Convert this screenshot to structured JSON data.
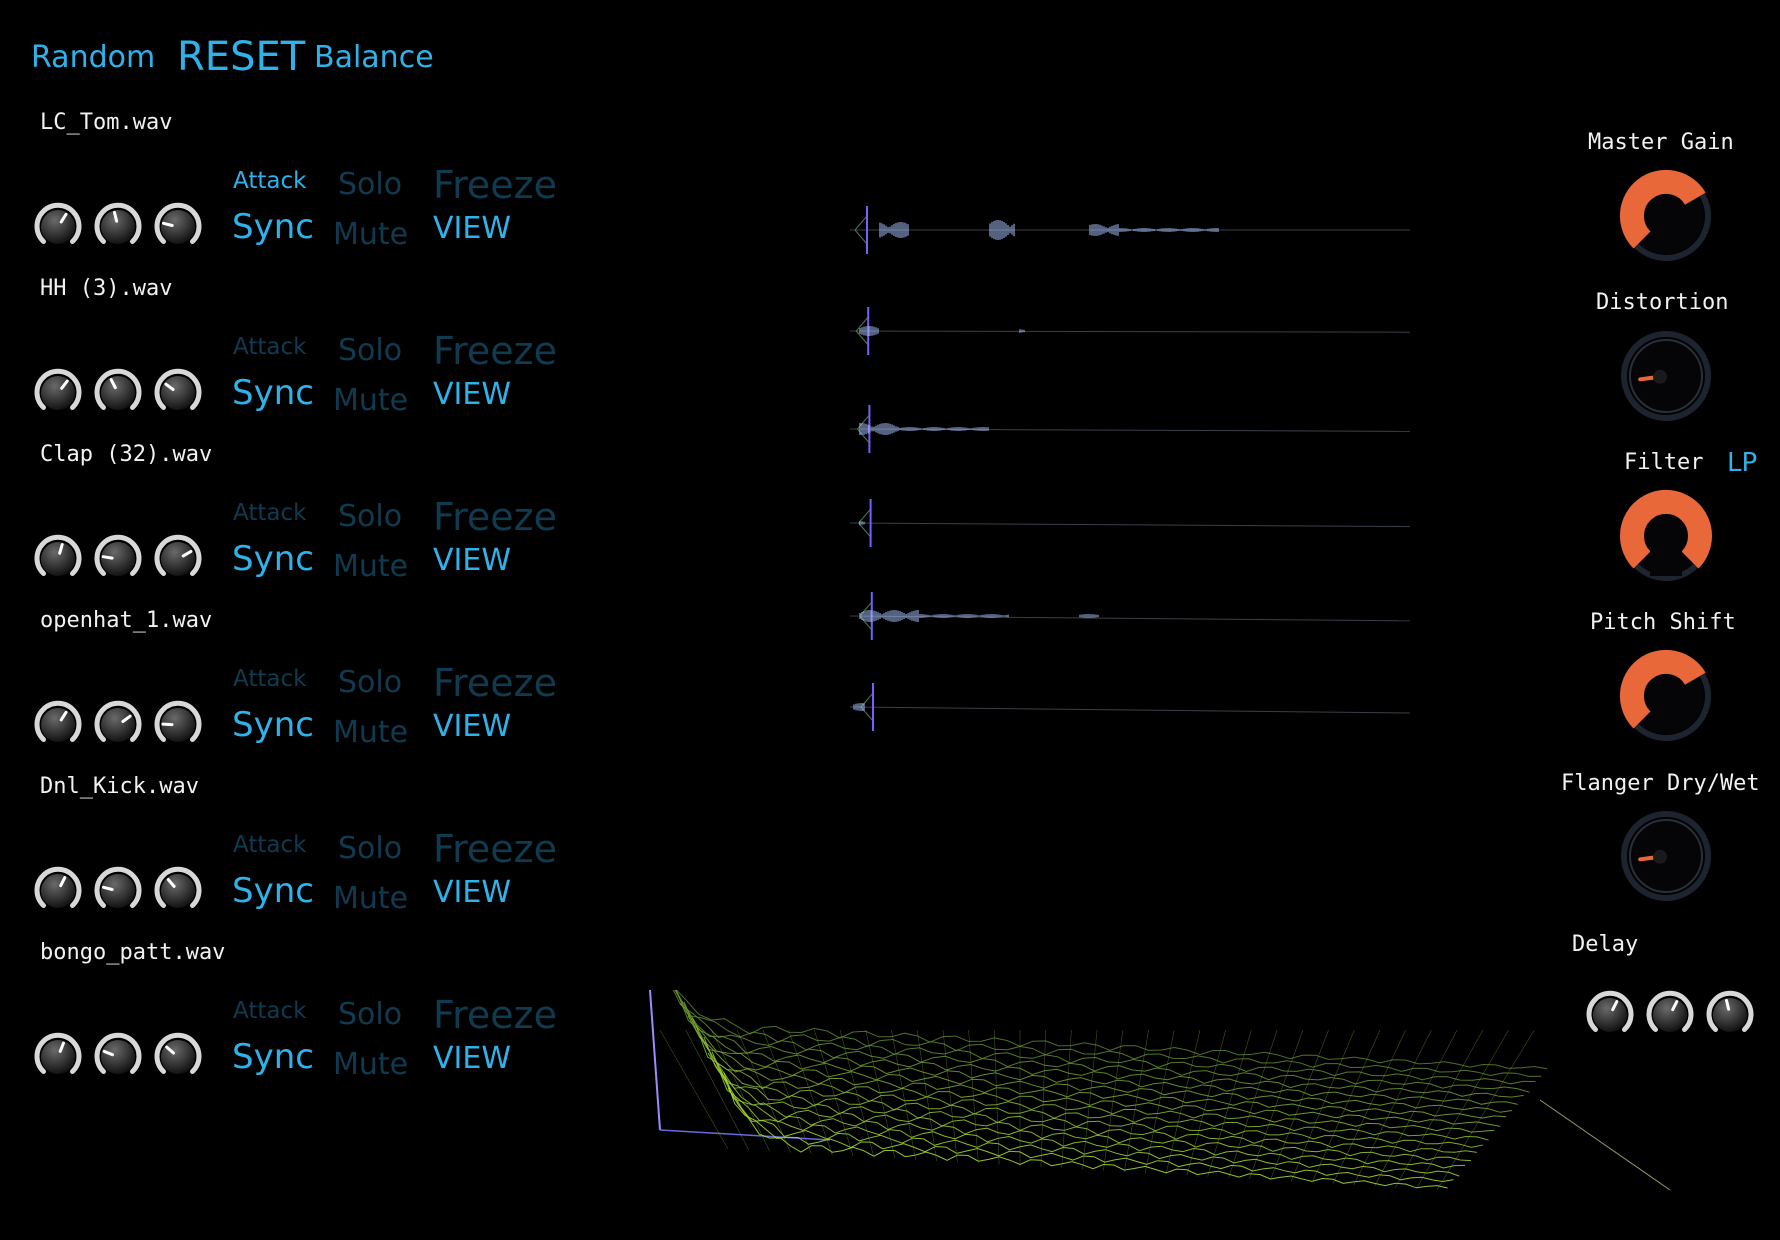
{
  "topbar": {
    "random_label": "Random",
    "reset_label": "RESET",
    "balance_label": "Balance"
  },
  "tracks": [
    {
      "file": "LC_Tom.wav",
      "attack_active": true,
      "knobs": [
        0.62,
        0.45,
        0.22
      ]
    },
    {
      "file": "HH (3).wav",
      "attack_active": false,
      "knobs": [
        0.64,
        0.4,
        0.3
      ]
    },
    {
      "file": "Clap (32).wav",
      "attack_active": false,
      "knobs": [
        0.56,
        0.2,
        0.72
      ]
    },
    {
      "file": "openhat_1.wav",
      "attack_active": false,
      "knobs": [
        0.62,
        0.7,
        0.18
      ]
    },
    {
      "file": "Dnl_Kick.wav",
      "attack_active": false,
      "knobs": [
        0.6,
        0.22,
        0.35
      ]
    },
    {
      "file": "bongo_patt.wav",
      "attack_active": false,
      "knobs": [
        0.58,
        0.25,
        0.32
      ]
    }
  ],
  "track_labels": {
    "attack": "Attack",
    "solo": "Solo",
    "freeze": "Freeze",
    "sync": "Sync",
    "mute": "Mute",
    "view": "VIEW"
  },
  "effects": {
    "master_gain": {
      "label": "Master Gain",
      "value": 0.72
    },
    "distortion": {
      "label": "Distortion",
      "value": 0.14
    },
    "filter": {
      "label": "Filter",
      "mode": "LP",
      "value": 0.5
    },
    "pitch_shift": {
      "label": "Pitch Shift",
      "value": 0.72
    },
    "flanger": {
      "label": "Flanger Dry/Wet",
      "value": 0.14
    },
    "delay": {
      "label": "Delay",
      "knobs": [
        0.6,
        0.6,
        0.45
      ]
    }
  },
  "colors": {
    "accent": "#2fb2ea",
    "dim": "#103a50",
    "orange": "#e8683a",
    "wave": "#a9c4ff",
    "playhead": "#7a5cff",
    "spectrum": "#7fa63a"
  }
}
